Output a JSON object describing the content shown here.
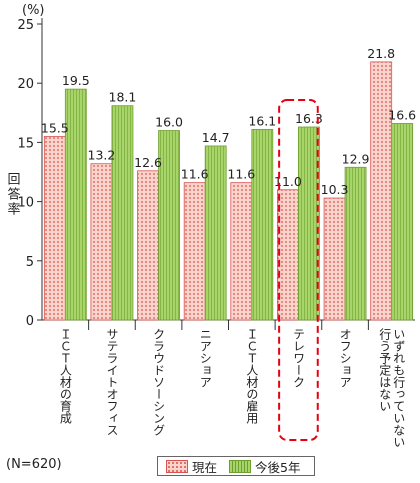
{
  "chart_data": {
    "type": "bar",
    "unit_label": "(%)",
    "ylabel": "回答率",
    "ylim": [
      0,
      25
    ],
    "yticks": [
      0,
      5,
      10,
      15,
      20,
      25
    ],
    "grid": false,
    "categories": [
      "ＩＣＴ人材の育成",
      "サテライトオフィス",
      "クラウドソーシング",
      "ニアショア",
      "ＩＣＴ人材の雇用",
      "テレワーク",
      "オフショア",
      "いずれも行っていない・行う予定はない"
    ],
    "category_lines": [
      [
        "ＩＣＴ人材の育成"
      ],
      [
        "サテライトオフィス"
      ],
      [
        "クラウドソーシング"
      ],
      [
        "ニアショア"
      ],
      [
        "ＩＣＴ人材の雇用"
      ],
      [
        "テレワーク"
      ],
      [
        "オフショア"
      ],
      [
        "行う予定はない",
        "いずれも行っていない・"
      ]
    ],
    "series": [
      {
        "name": "現在",
        "values": [
          15.5,
          13.2,
          12.6,
          11.6,
          11.6,
          11.0,
          10.3,
          21.8
        ]
      },
      {
        "name": "今後5年",
        "values": [
          19.5,
          18.1,
          16.0,
          14.7,
          16.1,
          16.3,
          12.9,
          16.6
        ]
      }
    ],
    "highlight_category": "テレワーク",
    "legend_position": "bottom-center",
    "colors": {
      "current_fill": "#f9d4cc",
      "current_dots": "#d9534f",
      "future_fill": "#a8d56a",
      "future_line": "#6e9f2f",
      "highlight": "#e60012",
      "axis": "#333333"
    }
  },
  "footer": {
    "note": "(N=620)"
  }
}
